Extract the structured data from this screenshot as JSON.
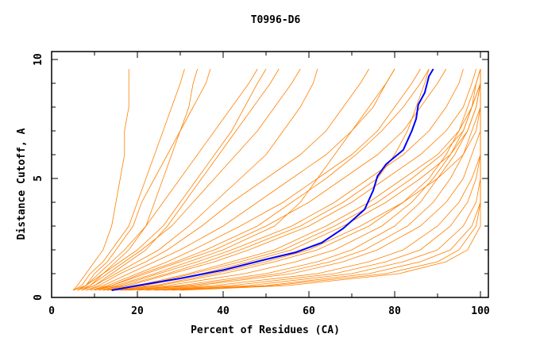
{
  "chart_data": {
    "type": "line",
    "title": "T0996-D6",
    "xlabel": "Percent of Residues (CA)",
    "ylabel": "Distance Cutoff, A",
    "xlim": [
      0,
      100
    ],
    "ylim": [
      0,
      10
    ],
    "xticks": [
      "0",
      "20",
      "40",
      "60",
      "80",
      "100"
    ],
    "yticks": [
      "0",
      "5",
      "10"
    ],
    "grid": false,
    "colors": {
      "models": "#ff8000",
      "highlight": "#0000ff"
    },
    "model_y_levels": [
      0.3,
      0.5,
      1,
      1.5,
      2,
      3,
      4,
      5,
      6,
      7,
      8,
      9,
      9.6
    ],
    "models": [
      [
        5,
        6,
        8,
        10,
        12,
        14,
        15,
        16,
        17,
        17,
        18,
        18,
        18
      ],
      [
        5,
        7,
        9,
        12,
        14,
        18,
        20,
        22,
        24,
        26,
        28,
        30,
        31
      ],
      [
        6,
        8,
        11,
        14,
        17,
        22,
        26,
        30,
        34,
        38,
        42,
        46,
        48
      ],
      [
        6,
        9,
        13,
        17,
        21,
        28,
        33,
        38,
        43,
        48,
        52,
        56,
        58
      ],
      [
        7,
        10,
        15,
        20,
        25,
        32,
        38,
        44,
        50,
        54,
        58,
        61,
        62
      ],
      [
        8,
        11,
        16,
        22,
        27,
        35,
        42,
        50,
        58,
        64,
        68,
        72,
        74
      ],
      [
        8,
        12,
        18,
        24,
        30,
        40,
        48,
        56,
        64,
        70,
        75,
        78,
        80
      ],
      [
        9,
        13,
        20,
        27,
        33,
        44,
        54,
        62,
        70,
        76,
        80,
        84,
        86
      ],
      [
        7,
        9,
        12,
        15,
        18,
        22,
        24,
        26,
        28,
        30,
        32,
        33,
        34
      ],
      [
        6,
        8,
        10,
        13,
        15,
        19,
        21,
        24,
        27,
        30,
        33,
        36,
        37
      ],
      [
        7,
        10,
        14,
        18,
        22,
        27,
        31,
        35,
        39,
        43,
        47,
        51,
        53
      ],
      [
        5,
        8,
        12,
        16,
        20,
        26,
        30,
        34,
        38,
        42,
        45,
        48,
        50
      ],
      [
        10,
        14,
        22,
        30,
        38,
        50,
        60,
        68,
        76,
        82,
        86,
        90,
        92
      ],
      [
        11,
        16,
        25,
        34,
        42,
        56,
        66,
        74,
        82,
        88,
        92,
        95,
        96
      ],
      [
        12,
        18,
        28,
        38,
        46,
        60,
        70,
        78,
        86,
        92,
        96,
        98,
        99
      ],
      [
        12,
        20,
        32,
        42,
        52,
        64,
        74,
        82,
        90,
        95,
        98,
        99,
        100
      ],
      [
        13,
        22,
        35,
        46,
        56,
        68,
        78,
        86,
        93,
        97,
        99,
        100,
        100
      ],
      [
        14,
        24,
        38,
        50,
        60,
        72,
        82,
        90,
        96,
        99,
        100,
        100,
        100
      ],
      [
        10,
        15,
        24,
        32,
        40,
        52,
        58,
        62,
        66,
        70,
        74,
        78,
        80
      ],
      [
        11,
        17,
        27,
        36,
        44,
        58,
        68,
        76,
        80,
        83,
        85,
        87,
        88
      ],
      [
        9,
        14,
        21,
        29,
        36,
        48,
        56,
        64,
        71,
        77,
        82,
        86,
        88
      ],
      [
        13,
        21,
        33,
        44,
        54,
        66,
        76,
        84,
        91,
        96,
        98,
        100,
        100
      ],
      [
        16,
        30,
        50,
        62,
        70,
        80,
        86,
        90,
        94,
        97,
        99,
        100,
        100
      ],
      [
        18,
        34,
        56,
        68,
        76,
        86,
        92,
        96,
        98,
        100,
        100,
        100,
        100
      ],
      [
        20,
        38,
        62,
        74,
        82,
        90,
        95,
        98,
        100,
        100,
        100,
        100,
        100
      ],
      [
        22,
        42,
        66,
        78,
        86,
        93,
        97,
        99,
        100,
        100,
        100,
        100,
        100
      ],
      [
        24,
        46,
        70,
        82,
        90,
        96,
        99,
        100,
        100,
        100,
        100,
        100,
        100
      ],
      [
        26,
        50,
        74,
        86,
        93,
        98,
        100,
        100,
        100,
        100,
        100,
        100,
        100
      ],
      [
        28,
        52,
        78,
        90,
        95,
        99,
        100,
        100,
        100,
        100,
        100,
        100,
        100
      ],
      [
        30,
        55,
        81,
        92,
        97,
        100,
        100,
        100,
        100,
        100,
        100,
        100,
        100
      ],
      [
        17,
        32,
        53,
        65,
        73,
        83,
        89,
        93,
        96,
        98,
        100,
        100,
        100
      ],
      [
        15,
        27,
        45,
        57,
        66,
        77,
        84,
        89,
        93,
        96,
        98,
        100,
        100
      ],
      [
        14,
        25,
        40,
        52,
        62,
        74,
        82,
        88,
        92,
        95,
        97,
        99,
        100
      ]
    ],
    "highlight": {
      "x": [
        14,
        20,
        30,
        40,
        50,
        57,
        63,
        68,
        73,
        75,
        76,
        78,
        82,
        84,
        85,
        85.5,
        87,
        88,
        89
      ],
      "y": [
        0.3,
        0.5,
        0.8,
        1.15,
        1.6,
        1.9,
        2.3,
        2.9,
        3.7,
        4.5,
        5.1,
        5.6,
        6.2,
        7,
        7.5,
        8.1,
        8.6,
        9.3,
        9.6
      ]
    }
  }
}
